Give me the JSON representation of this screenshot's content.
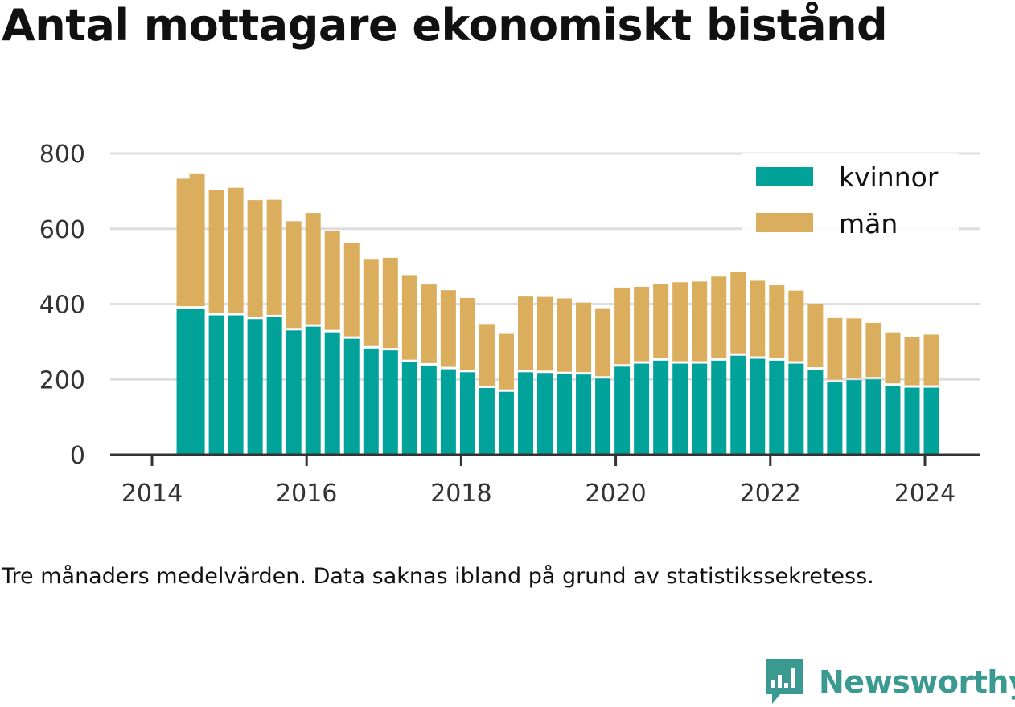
{
  "title": "Antal mottagare ekonomiskt bistånd",
  "caption": "Tre månaders medelvärden. Data saknas ibland på grund av statistikssekretess.",
  "brand": {
    "name": "Newsworthy",
    "icon": "newsworthy-logo-icon"
  },
  "colors": {
    "kvinnor": "#00a29a",
    "man": "#dbae5e",
    "grid": "#dddddd",
    "axis": "#333333"
  },
  "chart_data": {
    "type": "bar",
    "stacked": true,
    "x_type": "date",
    "x": [
      "2014-06",
      "2014-08",
      "2014-11",
      "2015-02",
      "2015-05",
      "2015-08",
      "2015-11",
      "2016-02",
      "2016-05",
      "2016-08",
      "2016-11",
      "2017-02",
      "2017-05",
      "2017-08",
      "2017-11",
      "2018-02",
      "2018-05",
      "2018-08",
      "2018-11",
      "2019-02",
      "2019-05",
      "2019-08",
      "2019-11",
      "2020-02",
      "2020-05",
      "2020-08",
      "2020-11",
      "2021-02",
      "2021-05",
      "2021-08",
      "2021-11",
      "2022-02",
      "2022-05",
      "2022-08",
      "2022-11",
      "2023-02",
      "2023-05",
      "2023-08",
      "2023-11",
      "2024-02"
    ],
    "series": [
      {
        "name": "kvinnor",
        "values": [
          388,
          388,
          370,
          370,
          360,
          365,
          330,
          340,
          325,
          308,
          282,
          277,
          246,
          237,
          227,
          219,
          177,
          167,
          219,
          217,
          214,
          213,
          202,
          234,
          242,
          250,
          242,
          242,
          250,
          263,
          255,
          250,
          242,
          226,
          193,
          198,
          200,
          183,
          178,
          178
        ]
      },
      {
        "name": "män",
        "values": [
          345,
          359,
          333,
          339,
          316,
          312,
          290,
          302,
          269,
          255,
          238,
          246,
          231,
          215,
          210,
          197,
          170,
          154,
          201,
          202,
          201,
          191,
          187,
          210,
          204,
          203,
          216,
          218,
          223,
          223,
          207,
          200,
          194,
          173,
          170,
          164,
          150,
          142,
          135,
          141
        ]
      }
    ],
    "xlim": [
      "2014",
      "2024"
    ],
    "xticks": [
      "2014",
      "2016",
      "2018",
      "2020",
      "2022",
      "2024"
    ],
    "ylim": [
      0,
      800
    ],
    "yticks": [
      "0",
      "200",
      "400",
      "600",
      "800"
    ],
    "grid": true,
    "legend_position": "top-right"
  }
}
